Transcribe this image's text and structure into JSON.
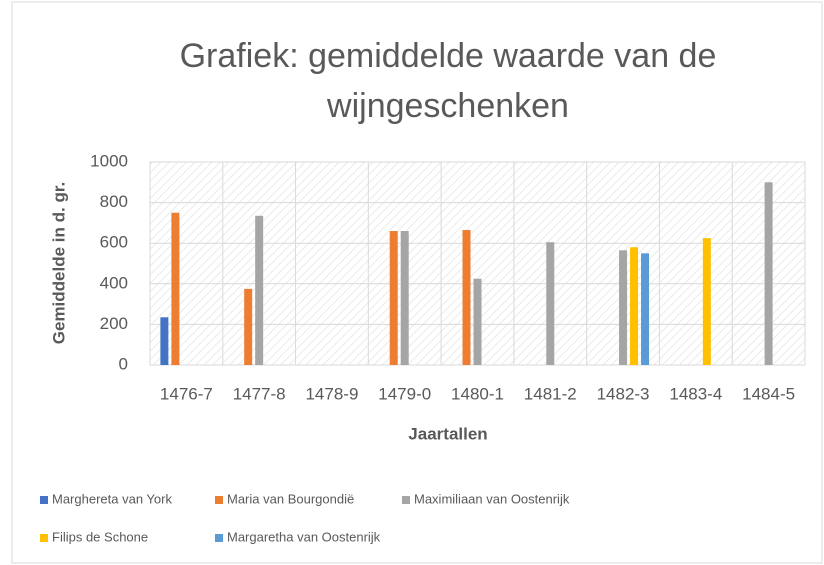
{
  "chart_data": {
    "type": "bar",
    "title_lines": [
      "Grafiek: gemiddelde waarde van de",
      "wijngeschenken"
    ],
    "x_label": "Jaartallen",
    "y_label": "Gemiddelde in d. gr.",
    "categories": [
      "1476-7",
      "1477-8",
      "1478-9",
      "1479-0",
      "1480-1",
      "1481-2",
      "1482-3",
      "1483-4",
      "1484-5"
    ],
    "series": [
      {
        "name": "Marghereta van York",
        "color": "#4472c4",
        "values": [
          235,
          null,
          null,
          null,
          null,
          null,
          null,
          null,
          null
        ]
      },
      {
        "name": "Maria van Bourgondië",
        "color": "#ed7d31",
        "values": [
          750,
          375,
          null,
          660,
          665,
          null,
          null,
          null,
          null
        ]
      },
      {
        "name": "Maximiliaan van Oostenrijk",
        "color": "#a5a5a5",
        "values": [
          null,
          735,
          null,
          660,
          425,
          605,
          565,
          null,
          900
        ]
      },
      {
        "name": "Filips de Schone",
        "color": "#ffc000",
        "values": [
          null,
          null,
          null,
          null,
          null,
          null,
          580,
          625,
          null
        ]
      },
      {
        "name": "Margaretha van Oostenrijk",
        "color": "#5b9bd5",
        "values": [
          null,
          null,
          null,
          null,
          null,
          null,
          550,
          null,
          null
        ]
      }
    ],
    "ylim": [
      0,
      1000
    ],
    "yticks": [
      0,
      200,
      400,
      600,
      800,
      1000
    ],
    "grid": true,
    "legend": "bottom"
  }
}
